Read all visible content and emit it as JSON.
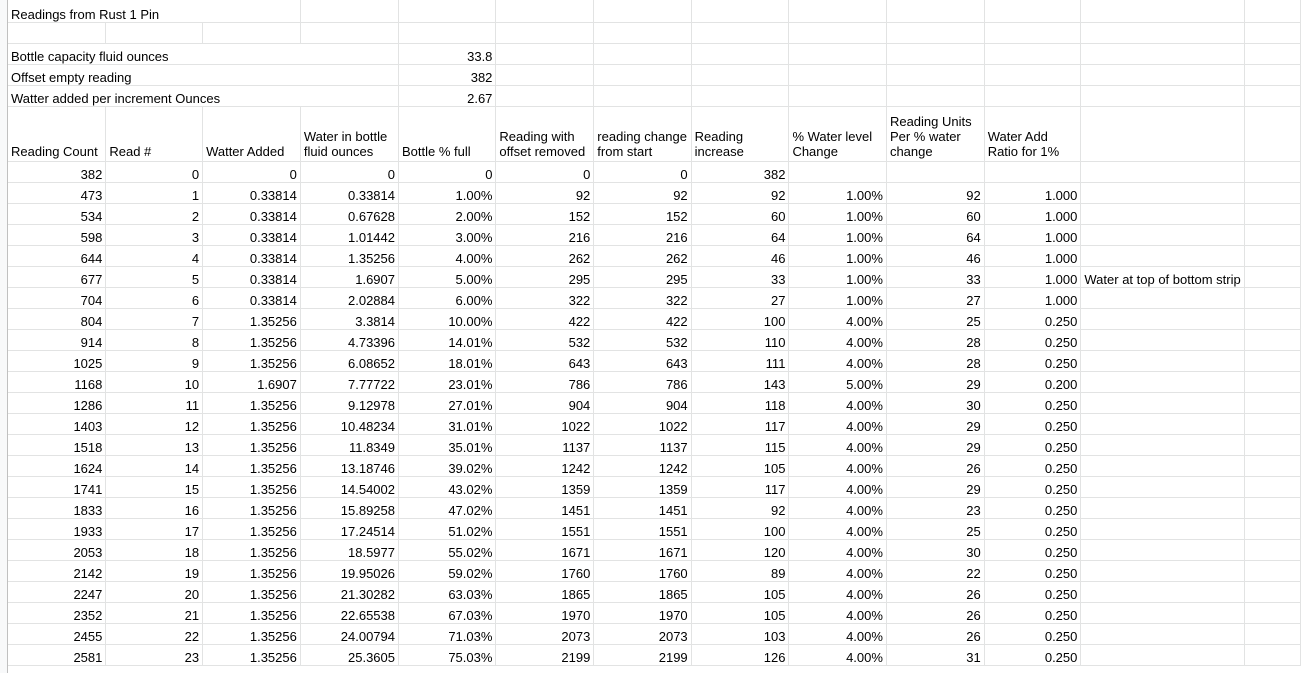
{
  "sheet": {
    "title": "Readings from Rust 1 Pin",
    "params": [
      {
        "label": "Bottle capacity fluid ounces",
        "value": "33.8"
      },
      {
        "label": "Offset empty reading",
        "value": "382"
      },
      {
        "label": "Watter added per increment Ounces",
        "value": "2.67"
      }
    ],
    "headers": [
      "Reading Count",
      "Read #",
      "Watter Added",
      "Water in bottle fluid ounces",
      "Bottle % full",
      "Reading with offset removed",
      "reading change from start",
      "Reading increase",
      "% Water level Change",
      "Reading Units Per % water change",
      "Water Add Ratio for 1%"
    ],
    "rows": [
      [
        "382",
        "0",
        "0",
        "0",
        "0",
        "0",
        "0",
        "382",
        "",
        "",
        ""
      ],
      [
        "473",
        "1",
        "0.33814",
        "0.33814",
        "1.00%",
        "92",
        "92",
        "92",
        "1.00%",
        "92",
        "1.000"
      ],
      [
        "534",
        "2",
        "0.33814",
        "0.67628",
        "2.00%",
        "152",
        "152",
        "60",
        "1.00%",
        "60",
        "1.000"
      ],
      [
        "598",
        "3",
        "0.33814",
        "1.01442",
        "3.00%",
        "216",
        "216",
        "64",
        "1.00%",
        "64",
        "1.000"
      ],
      [
        "644",
        "4",
        "0.33814",
        "1.35256",
        "4.00%",
        "262",
        "262",
        "46",
        "1.00%",
        "46",
        "1.000"
      ],
      [
        "677",
        "5",
        "0.33814",
        "1.6907",
        "5.00%",
        "295",
        "295",
        "33",
        "1.00%",
        "33",
        "1.000"
      ],
      [
        "704",
        "6",
        "0.33814",
        "2.02884",
        "6.00%",
        "322",
        "322",
        "27",
        "1.00%",
        "27",
        "1.000"
      ],
      [
        "804",
        "7",
        "1.35256",
        "3.3814",
        "10.00%",
        "422",
        "422",
        "100",
        "4.00%",
        "25",
        "0.250"
      ],
      [
        "914",
        "8",
        "1.35256",
        "4.73396",
        "14.01%",
        "532",
        "532",
        "110",
        "4.00%",
        "28",
        "0.250"
      ],
      [
        "1025",
        "9",
        "1.35256",
        "6.08652",
        "18.01%",
        "643",
        "643",
        "111",
        "4.00%",
        "28",
        "0.250"
      ],
      [
        "1168",
        "10",
        "1.6907",
        "7.77722",
        "23.01%",
        "786",
        "786",
        "143",
        "5.00%",
        "29",
        "0.200"
      ],
      [
        "1286",
        "11",
        "1.35256",
        "9.12978",
        "27.01%",
        "904",
        "904",
        "118",
        "4.00%",
        "30",
        "0.250"
      ],
      [
        "1403",
        "12",
        "1.35256",
        "10.48234",
        "31.01%",
        "1022",
        "1022",
        "117",
        "4.00%",
        "29",
        "0.250"
      ],
      [
        "1518",
        "13",
        "1.35256",
        "11.8349",
        "35.01%",
        "1137",
        "1137",
        "115",
        "4.00%",
        "29",
        "0.250"
      ],
      [
        "1624",
        "14",
        "1.35256",
        "13.18746",
        "39.02%",
        "1242",
        "1242",
        "105",
        "4.00%",
        "26",
        "0.250"
      ],
      [
        "1741",
        "15",
        "1.35256",
        "14.54002",
        "43.02%",
        "1359",
        "1359",
        "117",
        "4.00%",
        "29",
        "0.250"
      ],
      [
        "1833",
        "16",
        "1.35256",
        "15.89258",
        "47.02%",
        "1451",
        "1451",
        "92",
        "4.00%",
        "23",
        "0.250"
      ],
      [
        "1933",
        "17",
        "1.35256",
        "17.24514",
        "51.02%",
        "1551",
        "1551",
        "100",
        "4.00%",
        "25",
        "0.250"
      ],
      [
        "2053",
        "18",
        "1.35256",
        "18.5977",
        "55.02%",
        "1671",
        "1671",
        "120",
        "4.00%",
        "30",
        "0.250"
      ],
      [
        "2142",
        "19",
        "1.35256",
        "19.95026",
        "59.02%",
        "1760",
        "1760",
        "89",
        "4.00%",
        "22",
        "0.250"
      ],
      [
        "2247",
        "20",
        "1.35256",
        "21.30282",
        "63.03%",
        "1865",
        "1865",
        "105",
        "4.00%",
        "26",
        "0.250"
      ],
      [
        "2352",
        "21",
        "1.35256",
        "22.65538",
        "67.03%",
        "1970",
        "1970",
        "105",
        "4.00%",
        "26",
        "0.250"
      ],
      [
        "2455",
        "22",
        "1.35256",
        "24.00794",
        "71.03%",
        "2073",
        "2073",
        "103",
        "4.00%",
        "26",
        "0.250"
      ],
      [
        "2581",
        "23",
        "1.35256",
        "25.3605",
        "75.03%",
        "2199",
        "2199",
        "126",
        "4.00%",
        "31",
        "0.250"
      ]
    ],
    "notes": {
      "5": "Water at top of bottom strip"
    }
  }
}
